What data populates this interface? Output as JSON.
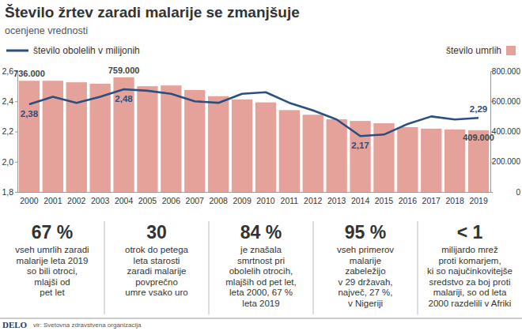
{
  "chart_data": {
    "type": "bar",
    "title": "Število žrtev zaradi malarije se zmanjšuje",
    "subtitle": "ocenjene vrednosti",
    "categories": [
      "2000",
      "2001",
      "2002",
      "2003",
      "2004",
      "2005",
      "2006",
      "2007",
      "2008",
      "2009",
      "2010",
      "2011",
      "2012",
      "2013",
      "2014",
      "2015",
      "2016",
      "2017",
      "2018",
      "2019"
    ],
    "series": [
      {
        "name": "število obolelih v milijonih",
        "type": "line",
        "color": "#2b4f7e",
        "values": [
          2.38,
          2.43,
          2.39,
          2.43,
          2.48,
          2.47,
          2.45,
          2.4,
          2.39,
          2.45,
          2.46,
          2.39,
          2.34,
          2.28,
          2.17,
          2.18,
          2.25,
          2.3,
          2.28,
          2.29
        ],
        "value_labels": [
          "2,38",
          null,
          null,
          null,
          "2,48",
          null,
          null,
          null,
          null,
          null,
          null,
          null,
          null,
          null,
          "2,17",
          null,
          null,
          null,
          null,
          "2,29"
        ]
      },
      {
        "name": "število umrlih",
        "type": "bar",
        "color": "#e5a29b",
        "axis": "y2",
        "values": [
          736000,
          736000,
          726000,
          716000,
          759000,
          700000,
          705000,
          675000,
          634000,
          613000,
          593000,
          542000,
          511000,
          481000,
          470000,
          455000,
          429000,
          419000,
          414000,
          409000
        ],
        "value_labels": [
          "736.000",
          null,
          null,
          null,
          "759.000",
          null,
          null,
          null,
          null,
          null,
          null,
          null,
          null,
          null,
          null,
          null,
          null,
          null,
          null,
          "409.000"
        ]
      }
    ],
    "ylim": [
      1.8,
      2.6
    ],
    "yticks": [
      {
        "value": 1.8,
        "label": "1,8"
      },
      {
        "value": 2.0,
        "label": "2,0"
      },
      {
        "value": 2.2,
        "label": "2,2"
      },
      {
        "value": 2.4,
        "label": "2,4"
      },
      {
        "value": 2.6,
        "label": "2,6"
      }
    ],
    "y2lim": [
      0,
      800000
    ],
    "y2ticks": [
      {
        "value": 0,
        "label": "0"
      },
      {
        "value": 200000,
        "label": "200.000"
      },
      {
        "value": 400000,
        "label": "400.000"
      },
      {
        "value": 600000,
        "label": "600.000"
      },
      {
        "value": 800000,
        "label": "800.000"
      }
    ],
    "grid": false,
    "legend": "top"
  },
  "facts": [
    {
      "value": "67 %",
      "lines": [
        "vseh umrlih zaradi",
        "malarije leta 2019",
        "so bili otroci,",
        "mlajši od",
        "pet let"
      ]
    },
    {
      "value": "30",
      "lines": [
        "otrok do petega",
        "leta starosti",
        "zaradi malarije",
        "povprečno",
        "umre vsako uro"
      ]
    },
    {
      "value": "84 %",
      "lines": [
        "je znašala",
        "smrtnost pri",
        "obolelih otrocih,",
        "mlajših od pet let,",
        "leta 2000, 67 %",
        "leta 2019"
      ]
    },
    {
      "value": "95 %",
      "lines": [
        "vseh primerov",
        "malarije",
        "zabeležijo",
        "v 29 državah,",
        "največ, 27 %,",
        "v Nigeriji"
      ]
    },
    {
      "value": "< 1",
      "lines": [
        "milijardo mrež",
        "proti komarjem,",
        "ki so najučinkovitejše",
        "sredstvo za boj proti",
        "malariji, so od leta",
        "2000 razdelili v Afriki"
      ]
    }
  ],
  "source": "vir: Svetovna zdravstvena organizacija",
  "logo": "DELO"
}
